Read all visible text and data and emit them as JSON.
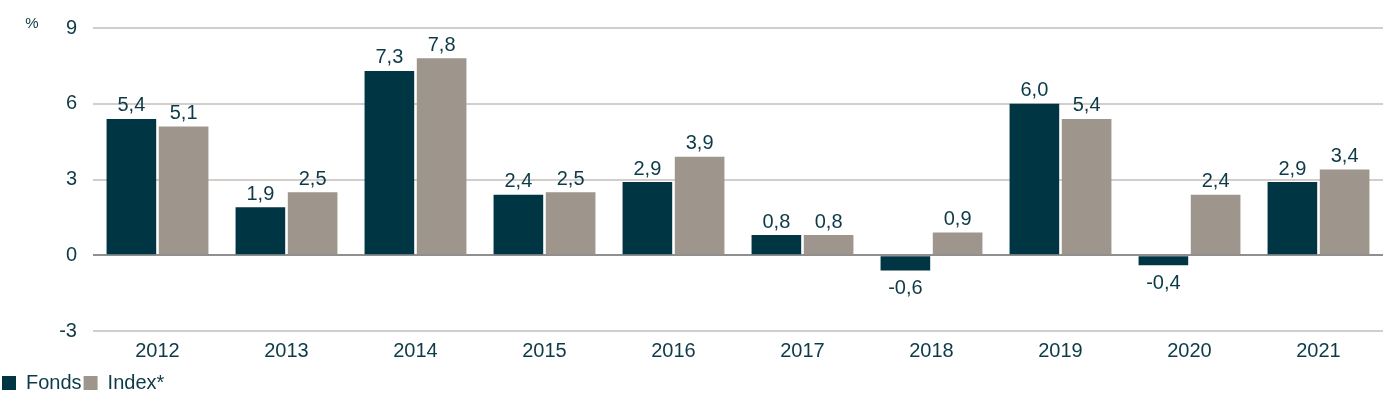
{
  "chart_data": {
    "type": "bar",
    "ylabel": "%",
    "categories": [
      "2012",
      "2013",
      "2014",
      "2015",
      "2016",
      "2017",
      "2018",
      "2019",
      "2020",
      "2021"
    ],
    "series": [
      {
        "name": "Fonds",
        "color": "#003543",
        "values": [
          5.4,
          1.9,
          7.3,
          2.4,
          2.9,
          0.8,
          -0.6,
          6.0,
          -0.4,
          2.9
        ],
        "value_labels": [
          "5,4",
          "1,9",
          "7,3",
          "2,4",
          "2,9",
          "0,8",
          "-0,6",
          "6,0",
          "-0,4",
          "2,9"
        ]
      },
      {
        "name": "Index*",
        "color": "#9e958c",
        "values": [
          5.1,
          2.5,
          7.8,
          2.5,
          3.9,
          0.8,
          0.9,
          5.4,
          2.4,
          3.4
        ],
        "value_labels": [
          "5,1",
          "2,5",
          "7,8",
          "2,5",
          "3,9",
          "0,8",
          "0,9",
          "5,4",
          "2,4",
          "3,4"
        ]
      }
    ],
    "ylim": [
      -3,
      9
    ],
    "yticks": [
      -3,
      0,
      3,
      6,
      9
    ],
    "grid": "y",
    "legend": "bottom left"
  }
}
